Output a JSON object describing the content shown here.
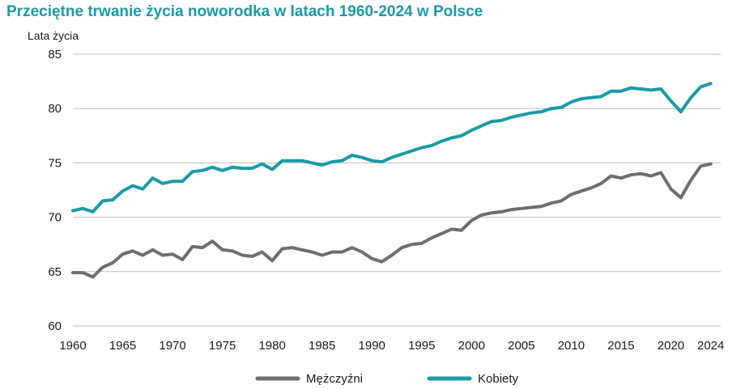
{
  "title": "Przeciętne trwanie życia noworodka w latach 1960-2024 w Polsce",
  "colors": {
    "men": "#6d6e70",
    "women": "#1a9ba6",
    "grid": "#bdbdbd",
    "title": "#1a9ba6"
  },
  "chart_data": {
    "type": "line",
    "title": "Przeciętne trwanie życia noworodka w latach 1960-2024 w Polsce",
    "ylabel": "Lata życia",
    "xlabel": "",
    "ylim": [
      60,
      85
    ],
    "yticks": [
      60,
      65,
      70,
      75,
      80,
      85
    ],
    "xlim": [
      1960,
      2025
    ],
    "xticks": [
      "1960",
      "1965",
      "1970",
      "1975",
      "1980",
      "1985",
      "1990",
      "1995",
      "2000",
      "2005",
      "2010",
      "2015",
      "2020",
      "2024"
    ],
    "grid": "horizontal",
    "legend_position": "bottom",
    "x": [
      1960,
      1961,
      1962,
      1963,
      1964,
      1965,
      1966,
      1967,
      1968,
      1969,
      1970,
      1971,
      1972,
      1973,
      1974,
      1975,
      1976,
      1977,
      1978,
      1979,
      1980,
      1981,
      1982,
      1983,
      1984,
      1985,
      1986,
      1987,
      1988,
      1989,
      1990,
      1991,
      1992,
      1993,
      1994,
      1995,
      1996,
      1997,
      1998,
      1999,
      2000,
      2001,
      2002,
      2003,
      2004,
      2005,
      2006,
      2007,
      2008,
      2009,
      2010,
      2011,
      2012,
      2013,
      2014,
      2015,
      2016,
      2017,
      2018,
      2019,
      2020,
      2021,
      2022,
      2023,
      2024
    ],
    "series": [
      {
        "name": "Mężczyźni",
        "color": "#6d6e70",
        "values": [
          64.9,
          64.9,
          64.5,
          65.4,
          65.8,
          66.6,
          66.9,
          66.5,
          67.0,
          66.5,
          66.6,
          66.1,
          67.3,
          67.2,
          67.8,
          67.0,
          66.9,
          66.5,
          66.4,
          66.8,
          66.0,
          67.1,
          67.2,
          67.0,
          66.8,
          66.5,
          66.8,
          66.8,
          67.2,
          66.8,
          66.2,
          65.9,
          66.5,
          67.2,
          67.5,
          67.6,
          68.1,
          68.5,
          68.9,
          68.8,
          69.7,
          70.2,
          70.4,
          70.5,
          70.7,
          70.8,
          70.9,
          71.0,
          71.3,
          71.5,
          72.1,
          72.4,
          72.7,
          73.1,
          73.8,
          73.6,
          73.9,
          74.0,
          73.8,
          74.1,
          72.6,
          71.8,
          73.4,
          74.7,
          74.9
        ]
      },
      {
        "name": "Kobiety",
        "color": "#1a9ba6",
        "values": [
          70.6,
          70.8,
          70.5,
          71.5,
          71.6,
          72.4,
          72.9,
          72.6,
          73.6,
          73.1,
          73.3,
          73.3,
          74.2,
          74.3,
          74.6,
          74.3,
          74.6,
          74.5,
          74.5,
          74.9,
          74.4,
          75.2,
          75.2,
          75.2,
          75.0,
          74.8,
          75.1,
          75.2,
          75.7,
          75.5,
          75.2,
          75.1,
          75.5,
          75.8,
          76.1,
          76.4,
          76.6,
          77.0,
          77.3,
          77.5,
          78.0,
          78.4,
          78.8,
          78.9,
          79.2,
          79.4,
          79.6,
          79.7,
          80.0,
          80.1,
          80.6,
          80.9,
          81.0,
          81.1,
          81.6,
          81.6,
          81.9,
          81.8,
          81.7,
          81.8,
          80.7,
          79.7,
          81.0,
          82.0,
          82.3
        ]
      }
    ]
  }
}
